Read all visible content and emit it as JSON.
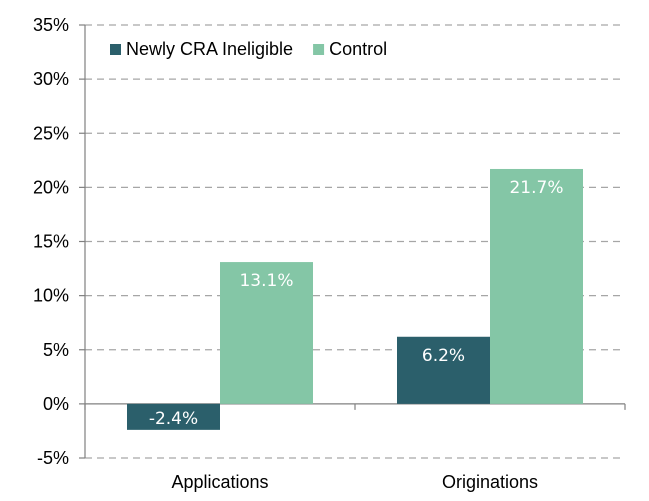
{
  "chart_data": {
    "type": "bar",
    "categories": [
      "Applications",
      "Originations"
    ],
    "series": [
      {
        "name": "Newly CRA Ineligible",
        "values": [
          -2.4,
          6.2
        ],
        "color": "#2b5f6b",
        "value_labels": [
          "-2.4%",
          "6.2%"
        ]
      },
      {
        "name": "Control",
        "values": [
          13.1,
          21.7
        ],
        "color": "#84c6a6",
        "value_labels": [
          "13.1%",
          "21.7%"
        ]
      }
    ],
    "ylim": [
      -5,
      35
    ],
    "yticks": [
      -5,
      0,
      5,
      10,
      15,
      20,
      25,
      30,
      35
    ],
    "ytick_labels": [
      "-5%",
      "0%",
      "5%",
      "10%",
      "15%",
      "20%",
      "25%",
      "30%",
      "35%"
    ],
    "y_unit": "%",
    "grid": true,
    "legend": "top-left"
  }
}
